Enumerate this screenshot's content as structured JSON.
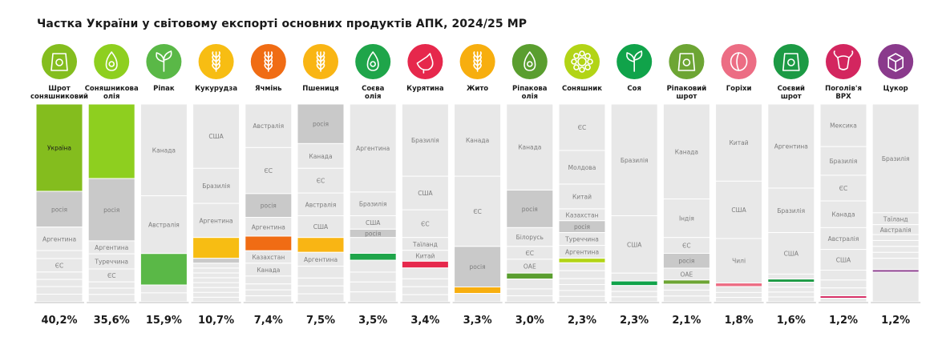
{
  "title": "Частка України у світовому експорті основних продуктів АПК, 2024/25 МР",
  "colors": {
    "segment_default": "#e8e8e8",
    "segment_grey": "#c9c9c9",
    "divider": "#ffffff",
    "column_label_text": "#1a1a1a",
    "segment_text": "#7d7d7d"
  },
  "chart_data": {
    "type": "bar",
    "subtype": "stacked-100-percent-columns",
    "title": "Частка України у світовому експорті основних продуктів АПК, 2024/25 МР",
    "ylim": [
      0,
      100
    ],
    "grid": false,
    "categories": [
      {
        "label": "Шрот соняшниковий",
        "icon": "sunflower-meal-bag-icon",
        "color": "#84bd1e",
        "share_label": "40,2%",
        "ukraine_share": 40.2,
        "segments": [
          {
            "label": "Україна",
            "value": 40.2,
            "highlight": true
          },
          {
            "label": "росія",
            "value": 16.5,
            "grey": true
          },
          {
            "label": "Аргентина",
            "value": 10.8
          },
          {
            "label": "",
            "value": 3.7
          },
          {
            "label": "ЄС",
            "value": 6.2
          },
          {
            "label": "",
            "value": 3.4
          },
          {
            "label": "",
            "value": 3.3
          },
          {
            "label": "",
            "value": 3.5
          },
          {
            "label": "",
            "value": 3.5
          }
        ]
      },
      {
        "label": "Соняшникова олія",
        "icon": "sunflower-oil-drop-icon",
        "color": "#8ecf1f",
        "share_label": "35,6%",
        "ukraine_share": 35.6,
        "segments": [
          {
            "label": "",
            "value": 35.6,
            "highlight": true
          },
          {
            "label": "росія",
            "value": 29.8,
            "grey": true
          },
          {
            "label": "Аргентина",
            "value": 6.2
          },
          {
            "label": "Туреччина",
            "value": 7.2
          },
          {
            "label": "ЄС",
            "value": 6.2
          },
          {
            "label": "",
            "value": 3.0
          },
          {
            "label": "",
            "value": 3.0
          },
          {
            "label": "",
            "value": 3.5
          }
        ]
      },
      {
        "label": "Ріпак",
        "icon": "rapeseed-plant-icon",
        "color": "#5ab847",
        "share_label": "15,9%",
        "ukraine_share": 15.9,
        "segments": [
          {
            "label": "Канада",
            "value": 46.4
          },
          {
            "label": "Австралія",
            "value": 29.2
          },
          {
            "label": "",
            "value": 15.9,
            "highlight": true
          },
          {
            "label": "",
            "value": 4.0
          },
          {
            "label": "",
            "value": 4.5
          }
        ]
      },
      {
        "label": "Кукурудза",
        "icon": "corn-cob-icon",
        "color": "#f7bd13",
        "share_label": "10,7%",
        "ukraine_share": 10.7,
        "segments": [
          {
            "label": "США",
            "value": 33.0
          },
          {
            "label": "Бразилія",
            "value": 18.0
          },
          {
            "label": "Аргентина",
            "value": 17.5
          },
          {
            "label": "",
            "value": 10.7,
            "highlight": true
          },
          {
            "label": "",
            "value": 2.5,
            "grey": true
          },
          {
            "label": "",
            "value": 2.5
          },
          {
            "label": "",
            "value": 2.5
          },
          {
            "label": "",
            "value": 2.5
          },
          {
            "label": "",
            "value": 2.5
          },
          {
            "label": "",
            "value": 2.5
          },
          {
            "label": "",
            "value": 2.5
          },
          {
            "label": "",
            "value": 2.5
          },
          {
            "label": "",
            "value": 2.3
          }
        ]
      },
      {
        "label": "Ячмінь",
        "icon": "barley-ear-icon",
        "color": "#f06c14",
        "share_label": "7,4%",
        "ukraine_share": 7.4,
        "segments": [
          {
            "label": "Австралія",
            "value": 22.0
          },
          {
            "label": "ЄС",
            "value": 23.3
          },
          {
            "label": "росія",
            "value": 12.0,
            "grey": true
          },
          {
            "label": "Аргентина",
            "value": 9.5
          },
          {
            "label": "",
            "value": 7.4,
            "highlight": true
          },
          {
            "label": "Казахстан",
            "value": 6.3
          },
          {
            "label": "Канада",
            "value": 6.5
          },
          {
            "label": "",
            "value": 4.0
          },
          {
            "label": "",
            "value": 3.0
          },
          {
            "label": "",
            "value": 3.0
          },
          {
            "label": "",
            "value": 3.0
          }
        ]
      },
      {
        "label": "Пшениця",
        "icon": "wheat-ear-icon",
        "color": "#f9b514",
        "share_label": "7,5%",
        "ukraine_share": 7.5,
        "segments": [
          {
            "label": "росія",
            "value": 20.0,
            "grey": true
          },
          {
            "label": "Канада",
            "value": 12.5
          },
          {
            "label": "ЄС",
            "value": 12.5
          },
          {
            "label": "Австралія",
            "value": 11.5
          },
          {
            "label": "США",
            "value": 11.0
          },
          {
            "label": "",
            "value": 7.5,
            "highlight": true
          },
          {
            "label": "Аргентина",
            "value": 7.0
          },
          {
            "label": "",
            "value": 6.0
          },
          {
            "label": "",
            "value": 4.0
          },
          {
            "label": "",
            "value": 4.0
          },
          {
            "label": "",
            "value": 4.0
          }
        ]
      },
      {
        "label": "Соєва олія",
        "icon": "soy-oil-drop-icon",
        "color": "#1fa54a",
        "share_label": "3,5%",
        "ukraine_share": 3.5,
        "segments": [
          {
            "label": "Аргентина",
            "value": 44.5
          },
          {
            "label": "Бразилія",
            "value": 12.0
          },
          {
            "label": "США",
            "value": 6.8
          },
          {
            "label": "росія",
            "value": 4.2,
            "grey": true
          },
          {
            "label": "",
            "value": 8.0
          },
          {
            "label": "",
            "value": 3.5,
            "highlight": true
          },
          {
            "label": "",
            "value": 6.0
          },
          {
            "label": "",
            "value": 5.0
          },
          {
            "label": "",
            "value": 5.0
          },
          {
            "label": "",
            "value": 5.0
          }
        ]
      },
      {
        "label": "Курятина",
        "icon": "chicken-icon",
        "color": "#e6284c",
        "share_label": "3,4%",
        "ukraine_share": 3.4,
        "segments": [
          {
            "label": "Бразилія",
            "value": 36.5
          },
          {
            "label": "США",
            "value": 17.0
          },
          {
            "label": "ЄС",
            "value": 14.0
          },
          {
            "label": "Таїланд",
            "value": 6.5
          },
          {
            "label": "Китай",
            "value": 5.5
          },
          {
            "label": "",
            "value": 3.4,
            "highlight": true
          },
          {
            "label": "",
            "value": 5.5
          },
          {
            "label": "",
            "value": 4.0
          },
          {
            "label": "",
            "value": 4.0
          },
          {
            "label": "",
            "value": 3.6
          }
        ]
      },
      {
        "label": "Жито",
        "icon": "rye-ear-icon",
        "color": "#f7ae0f",
        "share_label": "3,3%",
        "ukraine_share": 3.3,
        "segments": [
          {
            "label": "Канада",
            "value": 36.5
          },
          {
            "label": "ЄС",
            "value": 35.5
          },
          {
            "label": "росія",
            "value": 20.5,
            "grey": true
          },
          {
            "label": "",
            "value": 3.3,
            "highlight": true
          },
          {
            "label": "",
            "value": 4.2
          }
        ]
      },
      {
        "label": "Ріпакова олія",
        "icon": "rapeseed-oil-drop-icon",
        "color": "#5a9e2f",
        "share_label": "3,0%",
        "ukraine_share": 3.0,
        "segments": [
          {
            "label": "Канада",
            "value": 43.5
          },
          {
            "label": "росія",
            "value": 19.0,
            "grey": true
          },
          {
            "label": "Білорусь",
            "value": 9.5
          },
          {
            "label": "ЄС",
            "value": 6.5
          },
          {
            "label": "ОАЕ",
            "value": 7.0
          },
          {
            "label": "",
            "value": 3.0,
            "highlight": true
          },
          {
            "label": "",
            "value": 5.0
          },
          {
            "label": "",
            "value": 3.5
          },
          {
            "label": "",
            "value": 3.0
          }
        ]
      },
      {
        "label": "Соняшник",
        "icon": "sunflower-icon",
        "color": "#b2d416",
        "share_label": "2,3%",
        "ukraine_share": 2.3,
        "segments": [
          {
            "label": "ЄС",
            "value": 23.5
          },
          {
            "label": "Молдова",
            "value": 17.0
          },
          {
            "label": "Китай",
            "value": 12.5
          },
          {
            "label": "Казахстан",
            "value": 6.0
          },
          {
            "label": "росія",
            "value": 6.0,
            "grey": true
          },
          {
            "label": "Туреччина",
            "value": 6.5
          },
          {
            "label": "Аргентина",
            "value": 6.5
          },
          {
            "label": "",
            "value": 2.3,
            "highlight": true
          },
          {
            "label": "",
            "value": 4.0
          },
          {
            "label": "",
            "value": 4.0
          },
          {
            "label": "",
            "value": 3.0
          },
          {
            "label": "",
            "value": 3.0
          },
          {
            "label": "",
            "value": 3.0
          },
          {
            "label": "",
            "value": 2.7
          }
        ]
      },
      {
        "label": "Соя",
        "icon": "soybean-sprout-icon",
        "color": "#10a34a",
        "share_label": "2,3%",
        "ukraine_share": 2.3,
        "segments": [
          {
            "label": "Бразилія",
            "value": 56.5
          },
          {
            "label": "США",
            "value": 29.0
          },
          {
            "label": "",
            "value": 4.0
          },
          {
            "label": "",
            "value": 2.3,
            "highlight": true
          },
          {
            "label": "",
            "value": 3.0
          },
          {
            "label": "",
            "value": 2.7
          },
          {
            "label": "",
            "value": 2.5
          }
        ]
      },
      {
        "label": "Ріпаковий шрот",
        "icon": "rapeseed-meal-bag-icon",
        "color": "#6da534",
        "share_label": "2,1%",
        "ukraine_share": 2.1,
        "segments": [
          {
            "label": "Канада",
            "value": 48.0
          },
          {
            "label": "Індія",
            "value": 19.5
          },
          {
            "label": "ЄС",
            "value": 8.0
          },
          {
            "label": "росія",
            "value": 7.5,
            "grey": true
          },
          {
            "label": "ОАЕ",
            "value": 6.0
          },
          {
            "label": "",
            "value": 2.1,
            "highlight": true
          },
          {
            "label": "",
            "value": 3.0
          },
          {
            "label": "",
            "value": 3.0
          },
          {
            "label": "",
            "value": 2.9
          }
        ]
      },
      {
        "label": "Горіхи",
        "icon": "walnut-icon",
        "color": "#ec6d84",
        "share_label": "1,8%",
        "ukraine_share": 1.8,
        "segments": [
          {
            "label": "Китай",
            "value": 39.0
          },
          {
            "label": "США",
            "value": 29.0
          },
          {
            "label": "Чилі",
            "value": 22.5
          },
          {
            "label": "",
            "value": 1.8,
            "highlight": true
          },
          {
            "label": "",
            "value": 3.0
          },
          {
            "label": "",
            "value": 2.5
          },
          {
            "label": "",
            "value": 2.2
          }
        ]
      },
      {
        "label": "Соєвий шрот",
        "icon": "soybean-meal-bag-icon",
        "color": "#1c9a44",
        "share_label": "1,6%",
        "ukraine_share": 1.6,
        "segments": [
          {
            "label": "Аргентина",
            "value": 42.5
          },
          {
            "label": "Бразилія",
            "value": 22.5
          },
          {
            "label": "США",
            "value": 21.0
          },
          {
            "label": "",
            "value": 2.5
          },
          {
            "label": "",
            "value": 1.6,
            "highlight": true
          },
          {
            "label": "",
            "value": 2.5
          },
          {
            "label": "",
            "value": 2.5
          },
          {
            "label": "",
            "value": 2.5
          },
          {
            "label": "",
            "value": 2.4
          }
        ]
      },
      {
        "label": "Поголів'я ВРХ",
        "icon": "cattle-head-icon",
        "color": "#d3265f",
        "share_label": "1,2%",
        "ukraine_share": 1.2,
        "segments": [
          {
            "label": "Мексика",
            "value": 21.5
          },
          {
            "label": "Бразилія",
            "value": 14.5
          },
          {
            "label": "ЄС",
            "value": 13.0
          },
          {
            "label": "Канада",
            "value": 13.5
          },
          {
            "label": "Австралія",
            "value": 11.0
          },
          {
            "label": "США",
            "value": 10.5
          },
          {
            "label": "",
            "value": 5.0
          },
          {
            "label": "",
            "value": 4.0
          },
          {
            "label": "",
            "value": 4.0
          },
          {
            "label": "",
            "value": 1.2,
            "highlight": true
          },
          {
            "label": "",
            "value": 1.8
          }
        ]
      },
      {
        "label": "Цукор",
        "icon": "sugar-cube-icon",
        "color": "#8a3a8c",
        "share_label": "1,2%",
        "ukraine_share": 1.2,
        "segments": [
          {
            "label": "Бразилія",
            "value": 55.0
          },
          {
            "label": "Таїланд",
            "value": 6.0
          },
          {
            "label": "Австралія",
            "value": 5.0
          },
          {
            "label": "",
            "value": 3.0
          },
          {
            "label": "",
            "value": 3.0
          },
          {
            "label": "",
            "value": 3.0
          },
          {
            "label": "",
            "value": 3.0
          },
          {
            "label": "",
            "value": 5.8
          },
          {
            "label": "",
            "value": 1.2,
            "highlight": true
          },
          {
            "label": "",
            "value": 15.0
          }
        ]
      }
    ]
  }
}
